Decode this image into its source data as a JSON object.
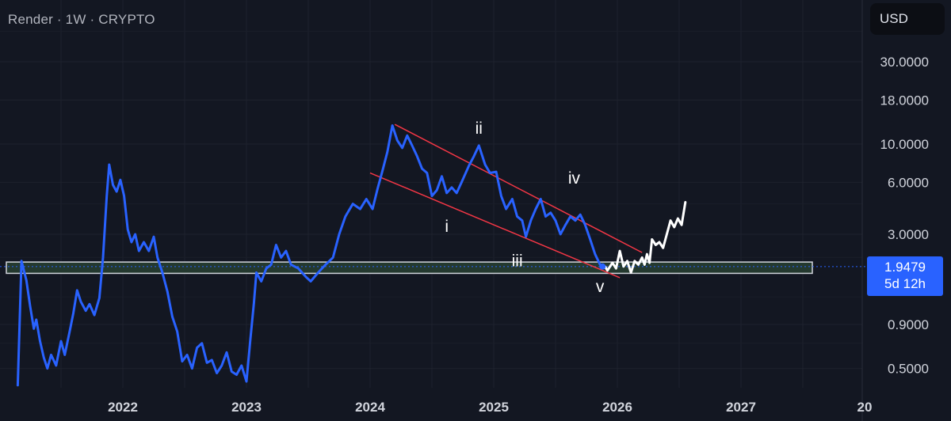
{
  "header": {
    "title": "Render · 1W · CRYPTO"
  },
  "currency": {
    "label": "USD"
  },
  "price_tag": {
    "value": "1.9479",
    "countdown": "5d 12h"
  },
  "colors": {
    "background": "#131722",
    "price_line": "#2962ff",
    "channel": "#f23645",
    "projection": "#ffffff",
    "support_zone": "#24392f"
  },
  "chart_data": {
    "type": "line",
    "scale": "log",
    "x_ticks": [
      "2022",
      "2023",
      "2024",
      "2025",
      "2026",
      "2027",
      "20"
    ],
    "y_ticks": [
      "30.0000",
      "18.0000",
      "10.0000",
      "6.0000",
      "3.0000",
      "0.9000",
      "0.5000"
    ],
    "ylim": [
      0.4,
      60
    ],
    "grid": true,
    "series": [
      {
        "role": "price",
        "points": [
          [
            2021.15,
            0.4
          ],
          [
            2021.18,
            2.1
          ],
          [
            2021.22,
            1.62
          ],
          [
            2021.25,
            1.15
          ],
          [
            2021.28,
            0.85
          ],
          [
            2021.3,
            0.96
          ],
          [
            2021.33,
            0.72
          ],
          [
            2021.36,
            0.58
          ],
          [
            2021.39,
            0.5
          ],
          [
            2021.42,
            0.6
          ],
          [
            2021.46,
            0.52
          ],
          [
            2021.5,
            0.72
          ],
          [
            2021.53,
            0.6
          ],
          [
            2021.57,
            0.82
          ],
          [
            2021.6,
            1.05
          ],
          [
            2021.63,
            1.42
          ],
          [
            2021.66,
            1.22
          ],
          [
            2021.7,
            1.08
          ],
          [
            2021.73,
            1.18
          ],
          [
            2021.77,
            1.02
          ],
          [
            2021.81,
            1.28
          ],
          [
            2021.84,
            2.2
          ],
          [
            2021.87,
            5.0
          ],
          [
            2021.89,
            7.6
          ],
          [
            2021.92,
            5.8
          ],
          [
            2021.95,
            5.3
          ],
          [
            2021.98,
            6.2
          ],
          [
            2022.01,
            5.0
          ],
          [
            2022.04,
            3.2
          ],
          [
            2022.07,
            2.7
          ],
          [
            2022.1,
            3.0
          ],
          [
            2022.13,
            2.4
          ],
          [
            2022.17,
            2.7
          ],
          [
            2022.21,
            2.4
          ],
          [
            2022.25,
            2.9
          ],
          [
            2022.28,
            2.2
          ],
          [
            2022.32,
            1.8
          ],
          [
            2022.36,
            1.4
          ],
          [
            2022.4,
            1.0
          ],
          [
            2022.44,
            0.82
          ],
          [
            2022.48,
            0.55
          ],
          [
            2022.52,
            0.6
          ],
          [
            2022.56,
            0.5
          ],
          [
            2022.6,
            0.66
          ],
          [
            2022.64,
            0.7
          ],
          [
            2022.68,
            0.54
          ],
          [
            2022.72,
            0.56
          ],
          [
            2022.76,
            0.47
          ],
          [
            2022.8,
            0.52
          ],
          [
            2022.84,
            0.62
          ],
          [
            2022.88,
            0.48
          ],
          [
            2022.92,
            0.46
          ],
          [
            2022.96,
            0.52
          ],
          [
            2023.0,
            0.42
          ],
          [
            2023.03,
            0.72
          ],
          [
            2023.06,
            1.2
          ],
          [
            2023.08,
            1.8
          ],
          [
            2023.12,
            1.6
          ],
          [
            2023.16,
            1.9
          ],
          [
            2023.2,
            2.0
          ],
          [
            2023.24,
            2.6
          ],
          [
            2023.28,
            2.2
          ],
          [
            2023.32,
            2.4
          ],
          [
            2023.36,
            2.0
          ],
          [
            2023.42,
            1.9
          ],
          [
            2023.48,
            1.7
          ],
          [
            2023.52,
            1.6
          ],
          [
            2023.58,
            1.8
          ],
          [
            2023.64,
            2.0
          ],
          [
            2023.7,
            2.2
          ],
          [
            2023.75,
            3.0
          ],
          [
            2023.8,
            3.8
          ],
          [
            2023.86,
            4.5
          ],
          [
            2023.92,
            4.2
          ],
          [
            2023.97,
            4.8
          ],
          [
            2024.02,
            4.2
          ],
          [
            2024.06,
            5.5
          ],
          [
            2024.1,
            7.0
          ],
          [
            2024.14,
            9.0
          ],
          [
            2024.18,
            12.8
          ],
          [
            2024.22,
            10.5
          ],
          [
            2024.26,
            9.5
          ],
          [
            2024.3,
            11.2
          ],
          [
            2024.34,
            9.8
          ],
          [
            2024.38,
            8.5
          ],
          [
            2024.42,
            7.2
          ],
          [
            2024.46,
            6.8
          ],
          [
            2024.5,
            5.0
          ],
          [
            2024.54,
            5.4
          ],
          [
            2024.58,
            6.5
          ],
          [
            2024.62,
            5.2
          ],
          [
            2024.66,
            5.6
          ],
          [
            2024.7,
            5.2
          ],
          [
            2024.74,
            6.0
          ],
          [
            2024.8,
            7.5
          ],
          [
            2024.84,
            8.5
          ],
          [
            2024.88,
            9.8
          ],
          [
            2024.93,
            7.6
          ],
          [
            2024.97,
            6.8
          ],
          [
            2025.02,
            6.9
          ],
          [
            2025.06,
            5.0
          ],
          [
            2025.1,
            4.2
          ],
          [
            2025.15,
            4.8
          ],
          [
            2025.19,
            3.8
          ],
          [
            2025.23,
            3.6
          ],
          [
            2025.26,
            2.9
          ],
          [
            2025.3,
            3.6
          ],
          [
            2025.34,
            4.2
          ],
          [
            2025.38,
            4.8
          ],
          [
            2025.42,
            3.8
          ],
          [
            2025.46,
            4.0
          ],
          [
            2025.5,
            3.6
          ],
          [
            2025.54,
            3.0
          ],
          [
            2025.58,
            3.4
          ],
          [
            2025.62,
            3.8
          ],
          [
            2025.66,
            3.6
          ],
          [
            2025.7,
            3.9
          ],
          [
            2025.74,
            3.4
          ],
          [
            2025.78,
            2.8
          ],
          [
            2025.82,
            2.3
          ],
          [
            2025.86,
            2.0
          ],
          [
            2025.88,
            1.95
          ]
        ]
      },
      {
        "role": "projection",
        "points": [
          [
            2025.9,
            1.95
          ],
          [
            2025.92,
            1.85
          ],
          [
            2025.96,
            2.05
          ],
          [
            2025.99,
            1.9
          ],
          [
            2026.02,
            2.4
          ],
          [
            2026.05,
            1.95
          ],
          [
            2026.08,
            2.1
          ],
          [
            2026.11,
            1.8
          ],
          [
            2026.14,
            2.1
          ],
          [
            2026.17,
            2.0
          ],
          [
            2026.2,
            2.2
          ],
          [
            2026.22,
            2.0
          ],
          [
            2026.24,
            2.3
          ],
          [
            2026.26,
            2.05
          ],
          [
            2026.28,
            2.8
          ],
          [
            2026.31,
            2.6
          ],
          [
            2026.34,
            2.7
          ],
          [
            2026.37,
            2.5
          ],
          [
            2026.4,
            3.0
          ],
          [
            2026.43,
            3.6
          ],
          [
            2026.46,
            3.3
          ],
          [
            2026.49,
            3.7
          ],
          [
            2026.52,
            3.4
          ],
          [
            2026.55,
            4.6
          ]
        ]
      }
    ],
    "channel": {
      "upper": [
        [
          2024.2,
          13.0
        ],
        [
          2026.2,
          2.35
        ]
      ],
      "lower": [
        [
          2024.0,
          6.8
        ],
        [
          2026.02,
          1.68
        ]
      ]
    },
    "support_zone": [
      1.78,
      2.07
    ],
    "last_price": 1.9479,
    "annotations": [
      {
        "text": "ii",
        "x": 2024.88,
        "y": 11.5
      },
      {
        "text": "iv",
        "x": 2025.65,
        "y": 5.9
      },
      {
        "text": "i",
        "x": 2024.62,
        "y": 3.1
      },
      {
        "text": "iii",
        "x": 2025.19,
        "y": 1.96
      },
      {
        "text": "v",
        "x": 2025.86,
        "y": 1.39
      }
    ]
  }
}
